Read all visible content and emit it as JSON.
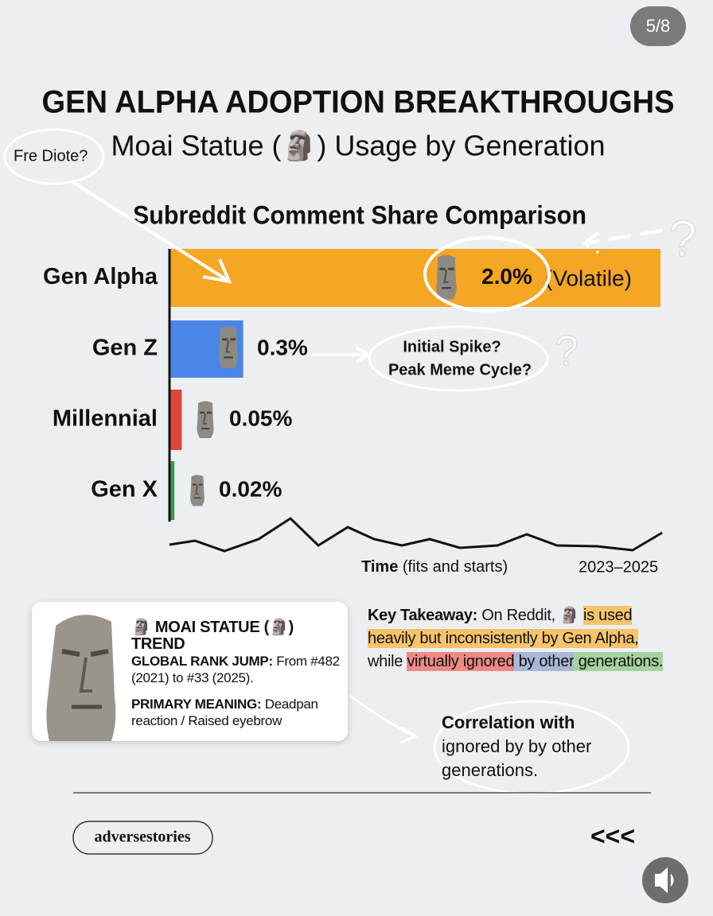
{
  "page": {
    "counter": "5/8",
    "title": "GEN ALPHA ADOPTION BREAKTHROUGHS",
    "subtitle": "Moai Statue (🗿) Usage by Generation",
    "handle": "adversestories",
    "back": "<<<"
  },
  "chart_data": {
    "type": "bar",
    "orientation": "horizontal",
    "title": "Subreddit Comment Share Comparison",
    "categories": [
      "Gen Alpha",
      "Gen Z",
      "Millennial",
      "Gen X"
    ],
    "values": [
      2.0,
      0.3,
      0.05,
      0.02
    ],
    "value_labels": [
      "2.0%",
      "0.3%",
      "0.05%",
      "0.02%"
    ],
    "colors": [
      "#f5a623",
      "#4a86e8",
      "#e0453a",
      "#3a9a48"
    ],
    "xlim": [
      0,
      2
    ],
    "x_label_bold": "Time",
    "x_label": "(fits and starts)",
    "x_range_label": "2023–2025",
    "annotations": [
      "Fre Diote?",
      "(Volatile)",
      "Initial Spike?",
      "Peak Meme Cycle?",
      "?",
      "?"
    ]
  },
  "card": {
    "heading": "🗿 MOAI STATUE (🗿) TREND",
    "rank_label": "GLOBAL RANK JUMP:",
    "rank_text": "From #482 (2021) to #33 (2025).",
    "meaning_label": "PRIMARY MEANING:",
    "meaning_text": "Deadpan reaction / Raised eyebrow"
  },
  "takeaway": {
    "lead": "Key Takeaway:",
    "segments": [
      {
        "text": " On Reddit, 🗿 "
      },
      {
        "text": "is used heavily but inconsistently by Gen Alpha,",
        "highlight": "#f7c46c"
      },
      {
        "text": " while "
      },
      {
        "text": "virtually ignored",
        "highlight": "#ec8a86"
      },
      {
        "text": " by other",
        "highlight": "#aab8d6"
      },
      {
        "text": " generations.",
        "highlight": "#a3d39d"
      }
    ]
  },
  "note": {
    "lines": [
      "Correlation with",
      "ignored by by other",
      "generations."
    ]
  }
}
